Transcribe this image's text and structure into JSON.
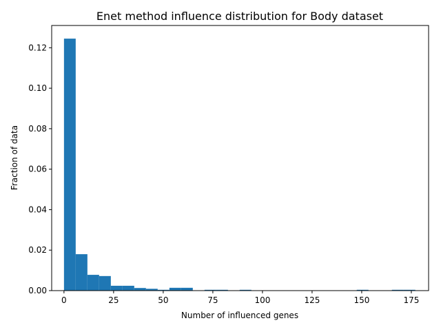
{
  "chart_data": {
    "type": "bar",
    "title": "Enet method influence distribution for Body dataset",
    "xlabel": "Number of influenced genes",
    "ylabel": "Fraction of data",
    "xlim": [
      -6.2,
      183.7
    ],
    "ylim": [
      0,
      0.131
    ],
    "xticks": [
      0,
      25,
      50,
      75,
      100,
      125,
      150,
      175
    ],
    "xtick_labels": [
      "0",
      "25",
      "50",
      "75",
      "100",
      "125",
      "150",
      "175"
    ],
    "yticks": [
      0.0,
      0.02,
      0.04,
      0.06,
      0.08,
      0.1,
      0.12
    ],
    "ytick_labels": [
      "0.00",
      "0.02",
      "0.04",
      "0.06",
      "0.08",
      "0.10",
      "0.12"
    ],
    "bin_edges": [
      0,
      5.9,
      11.8,
      17.7,
      23.6,
      29.5,
      35.4,
      41.3,
      47.2,
      53.1,
      59.0,
      64.9,
      70.8,
      76.7,
      82.6,
      88.5,
      94.4,
      100.3,
      106.2,
      112.1,
      118.0,
      123.9,
      129.8,
      135.7,
      141.6,
      147.5,
      153.4,
      159.3,
      165.2,
      171.1,
      177.0
    ],
    "values": [
      0.1245,
      0.018,
      0.0078,
      0.0072,
      0.0024,
      0.0024,
      0.0013,
      0.0009,
      0.0004,
      0.0014,
      0.0014,
      0.0,
      0.0004,
      0.0004,
      0.0,
      0.0004,
      0.0,
      0.0,
      0.0,
      0.0,
      0.0,
      0.0,
      0.0,
      0.0,
      0.0,
      0.0004,
      0.0,
      0.0,
      0.0004,
      0.0004
    ],
    "grid": false,
    "colors": {
      "bar": "#1f77b4",
      "axis": "#000000",
      "background": "#ffffff"
    }
  }
}
